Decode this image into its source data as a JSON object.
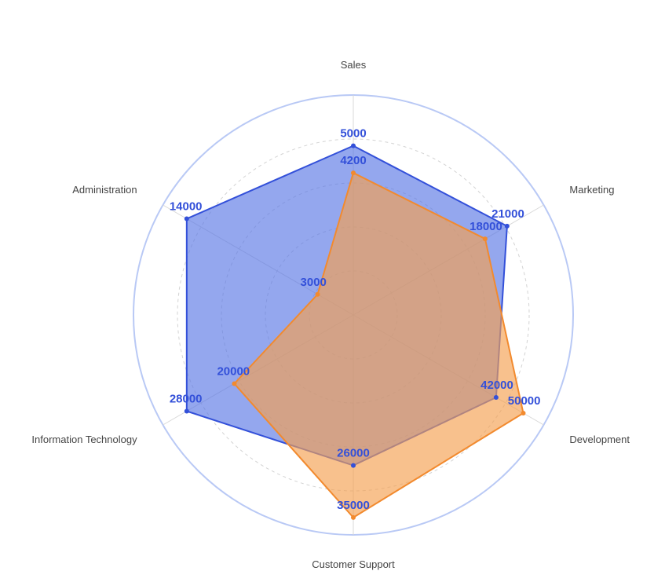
{
  "chart_data": {
    "type": "radar",
    "indicators": [
      {
        "name": "Sales",
        "max": 6500
      },
      {
        "name": "Marketing",
        "max": 26000
      },
      {
        "name": "Development",
        "max": 56000
      },
      {
        "name": "Customer Support",
        "max": 38000
      },
      {
        "name": "Information Technology",
        "max": 32000
      },
      {
        "name": "Administration",
        "max": 16000
      }
    ],
    "series": [
      {
        "values": [
          5000,
          21000,
          42000,
          26000,
          28000,
          14000
        ],
        "color": "#3350d9",
        "fill": "#5b78e5",
        "fill_opacity": 0.65
      },
      {
        "values": [
          4200,
          18000,
          50000,
          35000,
          20000,
          3000
        ],
        "color": "#f28a2e",
        "fill": "#f5a050",
        "fill_opacity": 0.65
      }
    ],
    "outer_ring_color": "#b9c9f5",
    "grid_rings": 5,
    "label_color": "#3350d9"
  }
}
